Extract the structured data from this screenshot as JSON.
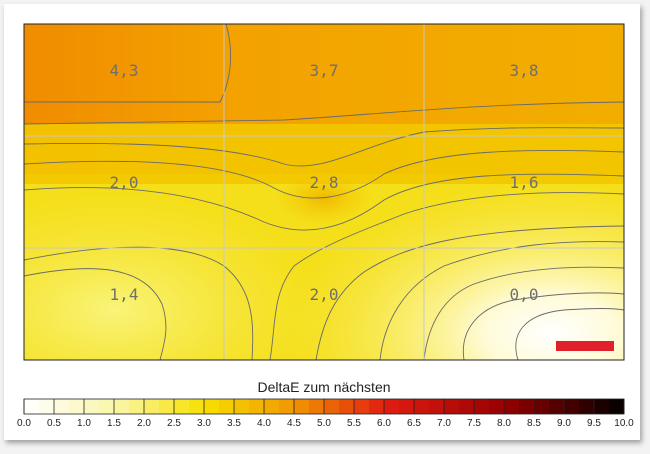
{
  "chart_data": {
    "type": "heatmap",
    "title": "",
    "grid": true,
    "rows": 3,
    "cols": 3,
    "cell_values": [
      [
        "4,3",
        "3,7",
        "3,8"
      ],
      [
        "2,0",
        "2,8",
        "1,6"
      ],
      [
        "1,4",
        "2,0",
        "0,0"
      ]
    ],
    "legend": {
      "title": "DeltaE zum nächsten",
      "ticks": [
        "0.0",
        "0.5",
        "1.0",
        "1.5",
        "2.0",
        "2.5",
        "3.0",
        "3.5",
        "4.0",
        "4.5",
        "5.0",
        "5.5",
        "6.0",
        "6.5",
        "7.0",
        "7.5",
        "8.0",
        "8.5",
        "9.0",
        "9.5",
        "10.0"
      ],
      "range": [
        0,
        10
      ],
      "placement": "bottom"
    },
    "colors": {
      "scale_low": "#ffffff",
      "scale_mid1": "#f6e000",
      "scale_mid2": "#f08a00",
      "scale_mid3": "#e21a12",
      "scale_high": "#000000",
      "marker": "#e0202a"
    }
  }
}
